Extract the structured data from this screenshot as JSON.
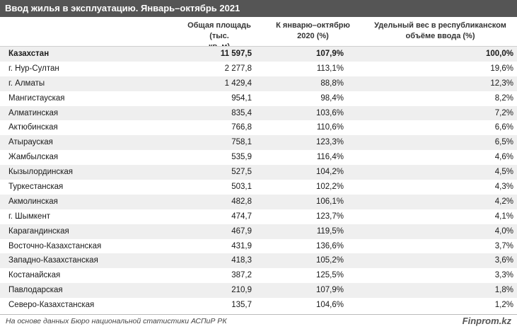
{
  "title": "Ввод жилья в эксплуатацию. Январь–октябрь 2021",
  "columns": {
    "c1_line1": "Общая площадь (тыс.",
    "c1_line2": "кв. м)",
    "c2_line1": "К январю–октябрю",
    "c2_line2": "2020 (%)",
    "c3_line1": "Удельный вес в республиканском",
    "c3_line2": "объёме ввода (%)"
  },
  "rows": [
    {
      "name": "Казахстан",
      "area": "11 597,5",
      "yoy": "107,9%",
      "share": "100,0%"
    },
    {
      "name": "г. Нур-Султан",
      "area": "2 277,8",
      "yoy": "113,1%",
      "share": "19,6%"
    },
    {
      "name": "г. Алматы",
      "area": "1 429,4",
      "yoy": "88,8%",
      "share": "12,3%"
    },
    {
      "name": "Мангистауская",
      "area": "954,1",
      "yoy": "98,4%",
      "share": "8,2%"
    },
    {
      "name": "Алматинская",
      "area": "835,4",
      "yoy": "103,6%",
      "share": "7,2%"
    },
    {
      "name": "Актюбинская",
      "area": "766,8",
      "yoy": "110,6%",
      "share": "6,6%"
    },
    {
      "name": "Атырауская",
      "area": "758,1",
      "yoy": "123,3%",
      "share": "6,5%"
    },
    {
      "name": "Жамбылская",
      "area": "535,9",
      "yoy": "116,4%",
      "share": "4,6%"
    },
    {
      "name": "Кызылординская",
      "area": "527,5",
      "yoy": "104,2%",
      "share": "4,5%"
    },
    {
      "name": "Туркестанская",
      "area": "503,1",
      "yoy": "102,2%",
      "share": "4,3%"
    },
    {
      "name": "Акмолинская",
      "area": "482,8",
      "yoy": "106,1%",
      "share": "4,2%"
    },
    {
      "name": "г. Шымкент",
      "area": "474,7",
      "yoy": "123,7%",
      "share": "4,1%"
    },
    {
      "name": "Карагандинская",
      "area": "467,9",
      "yoy": "119,5%",
      "share": "4,0%"
    },
    {
      "name": "Восточно-Казахстанская",
      "area": "431,9",
      "yoy": "136,6%",
      "share": "3,7%"
    },
    {
      "name": "Западно-Казахстанская",
      "area": "418,3",
      "yoy": "105,2%",
      "share": "3,6%"
    },
    {
      "name": "Костанайская",
      "area": "387,2",
      "yoy": "125,5%",
      "share": "3,3%"
    },
    {
      "name": "Павлодарская",
      "area": "210,9",
      "yoy": "107,9%",
      "share": "1,8%"
    },
    {
      "name": "Северо-Казахстанская",
      "area": "135,7",
      "yoy": "104,6%",
      "share": "1,2%"
    }
  ],
  "footer": {
    "source": "На основе данных Бюро национальной статистики АСПиР РК",
    "brand": "Finprom.kz"
  },
  "colors": {
    "title_bg": "#555555",
    "alt_row_bg": "#efefef"
  }
}
